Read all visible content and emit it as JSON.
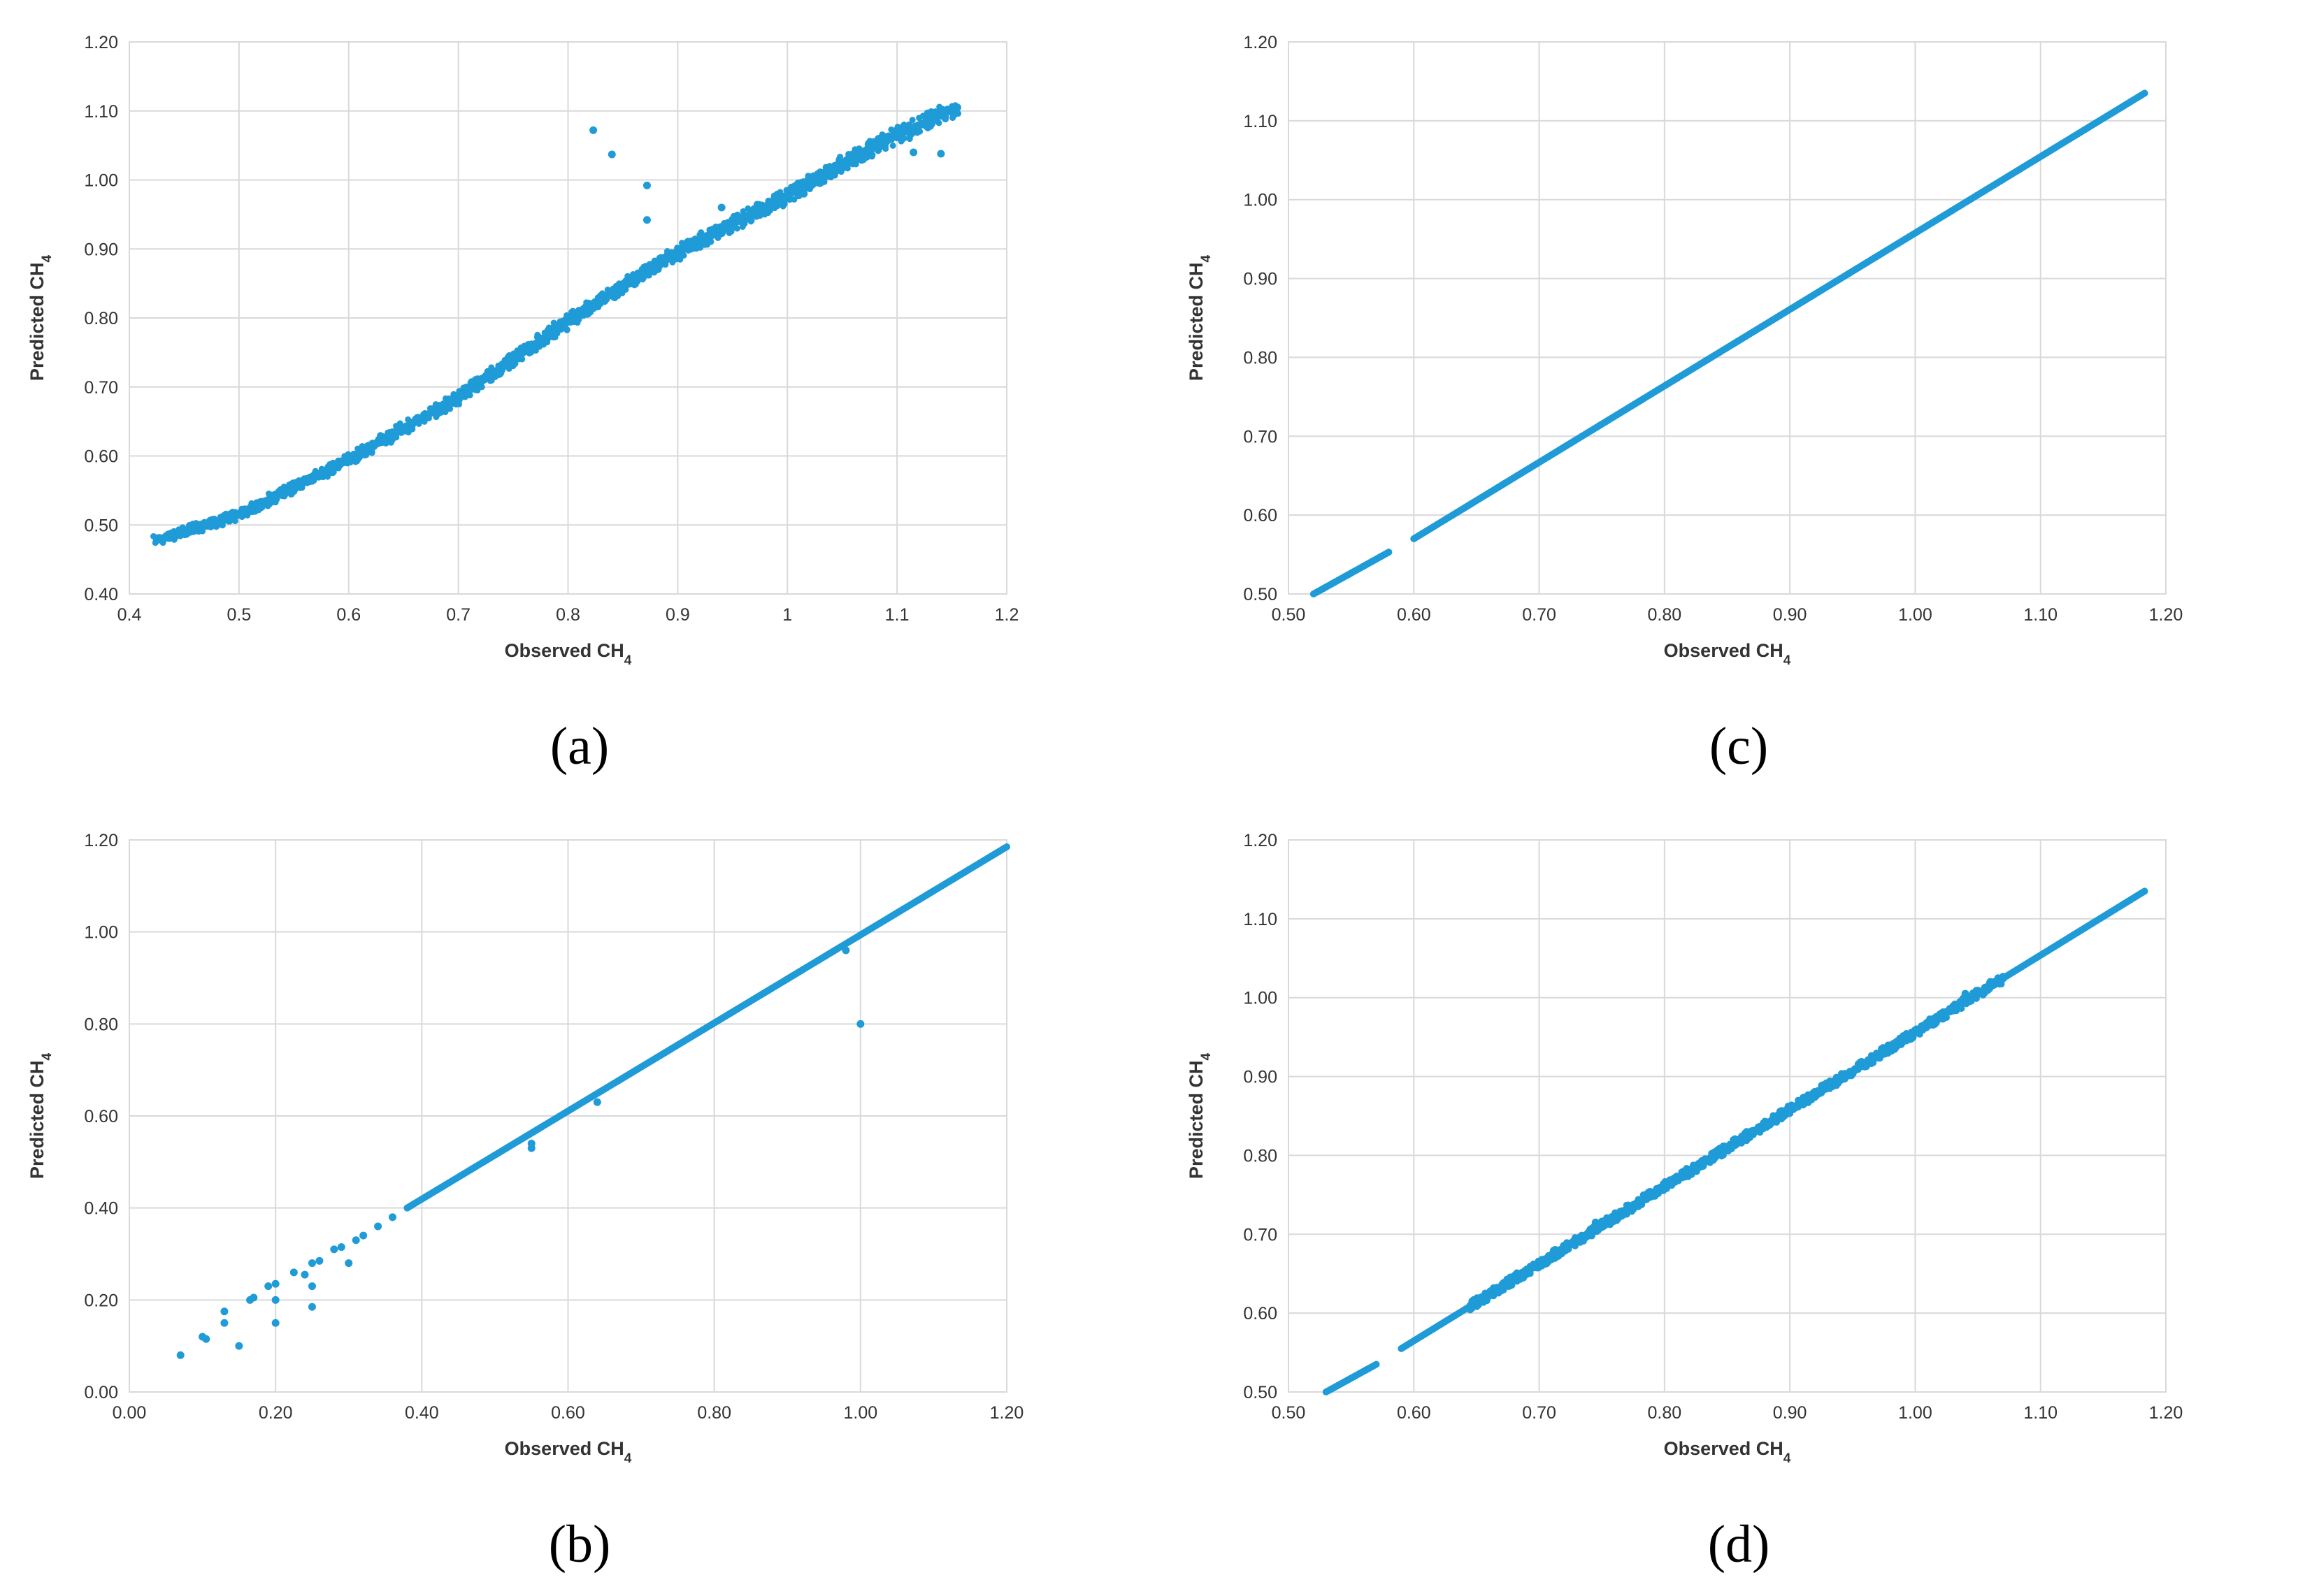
{
  "colors": {
    "points": "#1f9bd7",
    "grid": "#d9d9d9",
    "text": "#333333"
  },
  "chart_data": [
    {
      "id": "a",
      "type": "scatter",
      "panel_label": "(a)",
      "xlabel": "Observed CH",
      "xlabel_sub": "4",
      "ylabel": "Predicted CH",
      "ylabel_sub": "4",
      "xlim": [
        0.4,
        1.2
      ],
      "ylim": [
        0.4,
        1.2
      ],
      "x_ticks": [
        0.4,
        0.5,
        0.6,
        0.7,
        0.8,
        0.9,
        1.0,
        1.1,
        1.2
      ],
      "x_tick_labels": [
        "0.4",
        "0.5",
        "0.6",
        "0.7",
        "0.8",
        "0.9",
        "1",
        "1.1",
        "1.2"
      ],
      "y_ticks": [
        0.4,
        0.5,
        0.6,
        0.7,
        0.8,
        0.9,
        1.0,
        1.1,
        1.2
      ],
      "y_tick_labels": [
        "0.40",
        "0.50",
        "0.60",
        "0.70",
        "0.80",
        "0.90",
        "1.00",
        "1.10",
        "1.20"
      ],
      "curve": [
        [
          0.425,
          0.478
        ],
        [
          0.5,
          0.515
        ],
        [
          0.6,
          0.595
        ],
        [
          0.7,
          0.685
        ],
        [
          0.8,
          0.795
        ],
        [
          0.9,
          0.895
        ],
        [
          1.0,
          0.978
        ],
        [
          1.1,
          1.065
        ],
        [
          1.155,
          1.105
        ]
      ],
      "band": 0.008,
      "outliers": [
        [
          0.823,
          1.072
        ],
        [
          0.84,
          1.037
        ],
        [
          0.872,
          0.992
        ],
        [
          0.872,
          0.942
        ],
        [
          0.94,
          0.96
        ],
        [
          1.015,
          0.98
        ],
        [
          1.115,
          1.04
        ],
        [
          1.14,
          1.038
        ]
      ]
    },
    {
      "id": "c",
      "type": "scatter",
      "panel_label": "(c)",
      "xlabel": "Observed CH",
      "xlabel_sub": "4",
      "ylabel": "Predicted CH",
      "ylabel_sub": "4",
      "xlim": [
        0.5,
        1.2
      ],
      "ylim": [
        0.5,
        1.2
      ],
      "x_ticks": [
        0.5,
        0.6,
        0.7,
        0.8,
        0.9,
        1.0,
        1.1,
        1.2
      ],
      "x_tick_labels": [
        "0.50",
        "0.60",
        "0.70",
        "0.80",
        "0.90",
        "1.00",
        "1.10",
        "1.20"
      ],
      "y_ticks": [
        0.5,
        0.6,
        0.7,
        0.8,
        0.9,
        1.0,
        1.1,
        1.2
      ],
      "y_tick_labels": [
        "0.50",
        "0.60",
        "0.70",
        "0.80",
        "0.90",
        "1.00",
        "1.10",
        "1.20"
      ],
      "segments": [
        [
          [
            0.52,
            0.5
          ],
          [
            0.58,
            0.553
          ]
        ],
        [
          [
            0.6,
            0.57
          ],
          [
            1.183,
            1.135
          ]
        ]
      ],
      "band": 0.0,
      "outliers": []
    },
    {
      "id": "b",
      "type": "scatter",
      "panel_label": "(b)",
      "xlabel": "Observed CH",
      "xlabel_sub": "4",
      "ylabel": "Predicted CH",
      "ylabel_sub": "4",
      "xlim": [
        0.0,
        1.2
      ],
      "ylim": [
        0.0,
        1.2
      ],
      "x_ticks": [
        0.0,
        0.2,
        0.4,
        0.6,
        0.8,
        1.0,
        1.2
      ],
      "x_tick_labels": [
        "0.00",
        "0.20",
        "0.40",
        "0.60",
        "0.80",
        "1.00",
        "1.20"
      ],
      "y_ticks": [
        0.0,
        0.2,
        0.4,
        0.6,
        0.8,
        1.0,
        1.2
      ],
      "y_tick_labels": [
        "0.00",
        "0.20",
        "0.40",
        "0.60",
        "0.80",
        "1.00",
        "1.20"
      ],
      "segments": [
        [
          [
            0.38,
            0.4
          ],
          [
            1.2,
            1.185
          ]
        ]
      ],
      "band": 0.0,
      "outliers": [
        [
          0.07,
          0.08
        ],
        [
          0.1,
          0.12
        ],
        [
          0.105,
          0.115
        ],
        [
          0.13,
          0.175
        ],
        [
          0.13,
          0.15
        ],
        [
          0.15,
          0.1
        ],
        [
          0.165,
          0.2
        ],
        [
          0.17,
          0.205
        ],
        [
          0.19,
          0.23
        ],
        [
          0.2,
          0.235
        ],
        [
          0.2,
          0.2
        ],
        [
          0.2,
          0.15
        ],
        [
          0.225,
          0.26
        ],
        [
          0.24,
          0.255
        ],
        [
          0.25,
          0.28
        ],
        [
          0.25,
          0.23
        ],
        [
          0.25,
          0.185
        ],
        [
          0.26,
          0.285
        ],
        [
          0.28,
          0.31
        ],
        [
          0.29,
          0.315
        ],
        [
          0.3,
          0.28
        ],
        [
          0.31,
          0.33
        ],
        [
          0.32,
          0.34
        ],
        [
          0.34,
          0.36
        ],
        [
          0.36,
          0.38
        ],
        [
          0.55,
          0.54
        ],
        [
          0.55,
          0.53
        ],
        [
          0.64,
          0.63
        ],
        [
          0.98,
          0.96
        ],
        [
          1.0,
          0.8
        ]
      ]
    },
    {
      "id": "d",
      "type": "scatter",
      "panel_label": "(d)",
      "xlabel": "Observed CH",
      "xlabel_sub": "4",
      "ylabel": "Predicted CH",
      "ylabel_sub": "4",
      "xlim": [
        0.5,
        1.2
      ],
      "ylim": [
        0.5,
        1.2
      ],
      "x_ticks": [
        0.5,
        0.6,
        0.7,
        0.8,
        0.9,
        1.0,
        1.1,
        1.2
      ],
      "x_tick_labels": [
        "0.50",
        "0.60",
        "0.70",
        "0.80",
        "0.90",
        "1.00",
        "1.10",
        "1.20"
      ],
      "y_ticks": [
        0.5,
        0.6,
        0.7,
        0.8,
        0.9,
        1.0,
        1.1,
        1.2
      ],
      "y_tick_labels": [
        "0.50",
        "0.60",
        "0.70",
        "0.80",
        "0.90",
        "1.00",
        "1.10",
        "1.20"
      ],
      "segments": [
        [
          [
            0.53,
            0.5
          ],
          [
            0.57,
            0.535
          ]
        ],
        [
          [
            0.59,
            0.555
          ],
          [
            1.183,
            1.135
          ]
        ]
      ],
      "band": 0.0,
      "thick_range": [
        0.645,
        1.07
      ],
      "thick_band": 0.006,
      "outliers": [
        [
          0.745,
          0.715
        ],
        [
          1.04,
          1.005
        ],
        [
          1.06,
          1.02
        ]
      ]
    }
  ]
}
